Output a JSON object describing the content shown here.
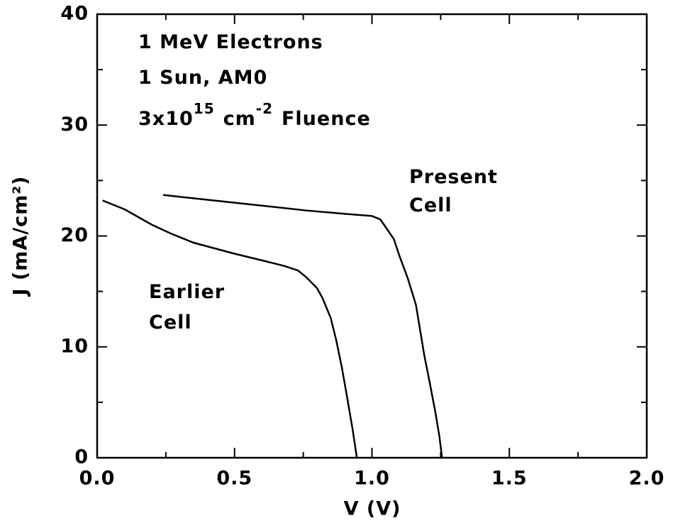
{
  "chart_data": {
    "type": "line",
    "xlabel": "V (V)",
    "ylabel": "J (mA/cm²)",
    "xlim": [
      0,
      2
    ],
    "ylim": [
      0,
      40
    ],
    "xticks": [
      {
        "value": 0,
        "label": "0.0"
      },
      0.5,
      {
        "value": 1,
        "label": "1.0"
      },
      1.5,
      {
        "value": 2,
        "label": "2.0"
      }
    ],
    "yticks": [
      0,
      10,
      20,
      30,
      40
    ],
    "xminorticks": [
      0.25,
      0.75,
      1.25,
      1.75
    ],
    "yminorticks": [
      5,
      15,
      25,
      35
    ],
    "annotations": [
      {
        "parts": [
          {
            "text": "1 MeV Electrons"
          }
        ]
      },
      {
        "parts": [
          {
            "text": "1 Sun, AM0"
          }
        ]
      },
      {
        "parts": [
          {
            "text": "3x10"
          },
          {
            "text": "15",
            "sup": true
          },
          {
            "text": "cm"
          },
          {
            "text": "-2",
            "sup": true
          },
          {
            "text": "Fluence"
          }
        ]
      },
      {
        "parts": [
          {
            "text": "Present"
          }
        ]
      },
      {
        "parts": [
          {
            "text": "Cell"
          }
        ]
      },
      {
        "parts": [
          {
            "text": "Earlier"
          }
        ]
      },
      {
        "parts": [
          {
            "text": "Cell"
          }
        ]
      }
    ],
    "series": [
      {
        "color": "#000000",
        "x": [
          0.02,
          0.1,
          0.2,
          0.27,
          0.35,
          0.5,
          0.6,
          0.68,
          0.73,
          0.76,
          0.8,
          0.82,
          0.85,
          0.87,
          0.89,
          0.91,
          0.93,
          0.945
        ],
        "values": [
          23.2,
          22.4,
          21.0,
          20.2,
          19.4,
          18.4,
          17.8,
          17.3,
          16.9,
          16.3,
          15.3,
          14.4,
          12.6,
          10.6,
          8.2,
          5.4,
          2.5,
          0
        ]
      },
      {
        "color": "#000000",
        "x": [
          0.24,
          0.35,
          0.5,
          0.65,
          0.76,
          0.9,
          1.0,
          1.03,
          1.05,
          1.08,
          1.1,
          1.13,
          1.16,
          1.19,
          1.21,
          1.23,
          1.245,
          1.255
        ],
        "values": [
          23.7,
          23.4,
          23.0,
          22.6,
          22.3,
          22.0,
          21.8,
          21.5,
          20.8,
          19.7,
          18.2,
          16.2,
          13.8,
          9.3,
          6.8,
          4.2,
          2.0,
          0
        ]
      }
    ]
  }
}
